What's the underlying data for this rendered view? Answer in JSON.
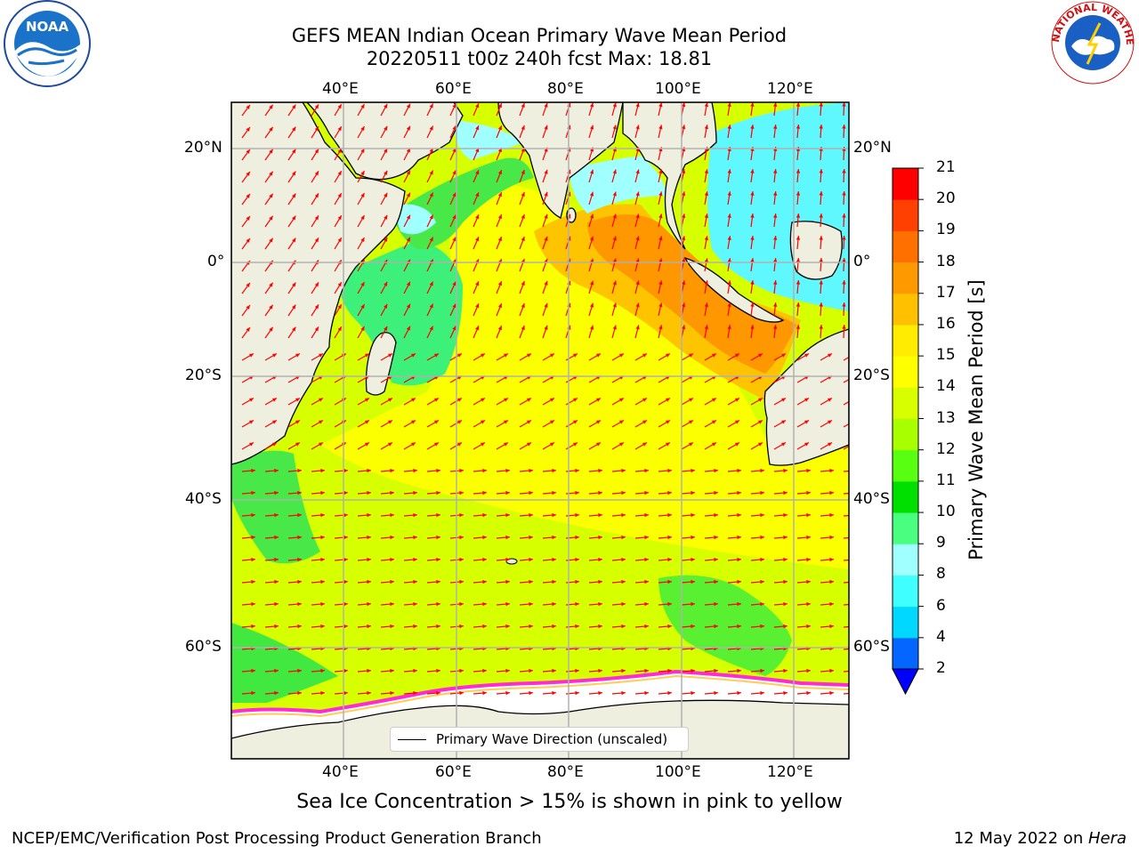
{
  "title_line1": "GEFS MEAN Indian Ocean Primary Wave Mean Period",
  "title_line2": "20220511 t00z 240h fcst   Max: 18.81",
  "map": {
    "lon_range": [
      20,
      130
    ],
    "lat_range": [
      -73,
      27
    ],
    "lon_ticks": [
      {
        "value": 40,
        "label": "40°E"
      },
      {
        "value": 60,
        "label": "60°E"
      },
      {
        "value": 80,
        "label": "80°E"
      },
      {
        "value": 100,
        "label": "100°E"
      },
      {
        "value": 120,
        "label": "120°E"
      }
    ],
    "lat_ticks": [
      {
        "value": 20,
        "label": "20°N"
      },
      {
        "value": 0,
        "label": "0°"
      },
      {
        "value": -20,
        "label": "20°S"
      },
      {
        "value": -40,
        "label": "40°S"
      },
      {
        "value": -60,
        "label": "60°S"
      }
    ],
    "land_color": "#efefdf",
    "ice_color": "#ffffff",
    "grid": true
  },
  "colorbar": {
    "label": "Primary Wave Mean Period [s]",
    "levels": [
      "2",
      "4",
      "6",
      "8",
      "9",
      "10",
      "11",
      "12",
      "13",
      "14",
      "15",
      "16",
      "17",
      "18",
      "19",
      "20",
      "21"
    ],
    "colors": [
      "#0566ff",
      "#00d8ff",
      "#40ffff",
      "#a0ffff",
      "#48ff80",
      "#00e000",
      "#58ff10",
      "#a8ff00",
      "#d8ff00",
      "#ffff00",
      "#ffec00",
      "#ffc000",
      "#ff9900",
      "#ff7000",
      "#ff4000",
      "#ff0000"
    ],
    "extend": "min",
    "extend_color": "#0000ff"
  },
  "legend": {
    "label": "Primary Wave Direction (unscaled)"
  },
  "note": "Sea Ice Concentration > 15% is shown in pink to yellow",
  "footer_left": "NCEP/EMC/Verification Post Processing Product Generation Branch",
  "footer_right_date": "12 May 2022 on ",
  "footer_right_machine": "Hera",
  "logos": {
    "left": "NOAA",
    "right": "NATIONAL WEATHER SERVICE"
  }
}
